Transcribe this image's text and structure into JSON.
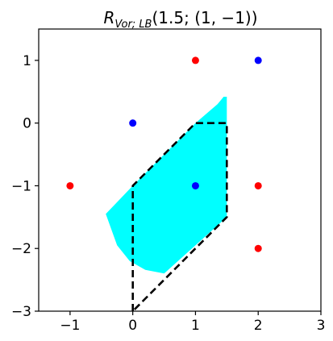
{
  "chart_data": {
    "type": "scatter",
    "title": {
      "symbol": "R",
      "subscript": "Vor; LB",
      "args": "(1.5; (1, −1))"
    },
    "xlim": [
      -1.5,
      3
    ],
    "ylim": [
      -3,
      1.5
    ],
    "xticks": [
      -1,
      0,
      1,
      2,
      3
    ],
    "yticks": [
      -3,
      -2,
      -1,
      0,
      1
    ],
    "xtick_labels": [
      "−1",
      "0",
      "1",
      "2",
      "3"
    ],
    "ytick_labels": [
      "−3",
      "−2",
      "−1",
      "0",
      "1"
    ],
    "grid": false,
    "colors": {
      "red": "#ff0000",
      "blue": "#0000ff",
      "region": "#00ffff",
      "dashed": "#000000"
    },
    "red_points": [
      {
        "x": 1,
        "y": 1
      },
      {
        "x": -1,
        "y": -1
      },
      {
        "x": 2,
        "y": -1
      },
      {
        "x": 2,
        "y": -2
      }
    ],
    "blue_points": [
      {
        "x": 2,
        "y": 1
      },
      {
        "x": 0,
        "y": 0
      },
      {
        "x": 1,
        "y": -1
      }
    ],
    "region": {
      "polygon": [
        {
          "x": 1.5,
          "y": 0.42
        },
        {
          "x": 1.5,
          "y": -1.5
        },
        {
          "x": 0.5,
          "y": -2.4
        },
        {
          "x": 0.2,
          "y": -2.34
        },
        {
          "x": -0.05,
          "y": -2.2
        },
        {
          "x": -0.25,
          "y": -1.95
        },
        {
          "x": -0.43,
          "y": -1.45
        },
        {
          "x": 0,
          "y": -1
        },
        {
          "x": 1,
          "y": 0
        },
        {
          "x": 1.35,
          "y": 0.3
        },
        {
          "x": 1.45,
          "y": 0.42
        }
      ]
    },
    "dashed_outline": [
      {
        "x": 0,
        "y": -3
      },
      {
        "x": 0,
        "y": -1
      },
      {
        "x": 1,
        "y": 0
      },
      {
        "x": 1.5,
        "y": 0
      },
      {
        "x": 1.5,
        "y": -1.5
      },
      {
        "x": 0,
        "y": -3
      }
    ]
  }
}
